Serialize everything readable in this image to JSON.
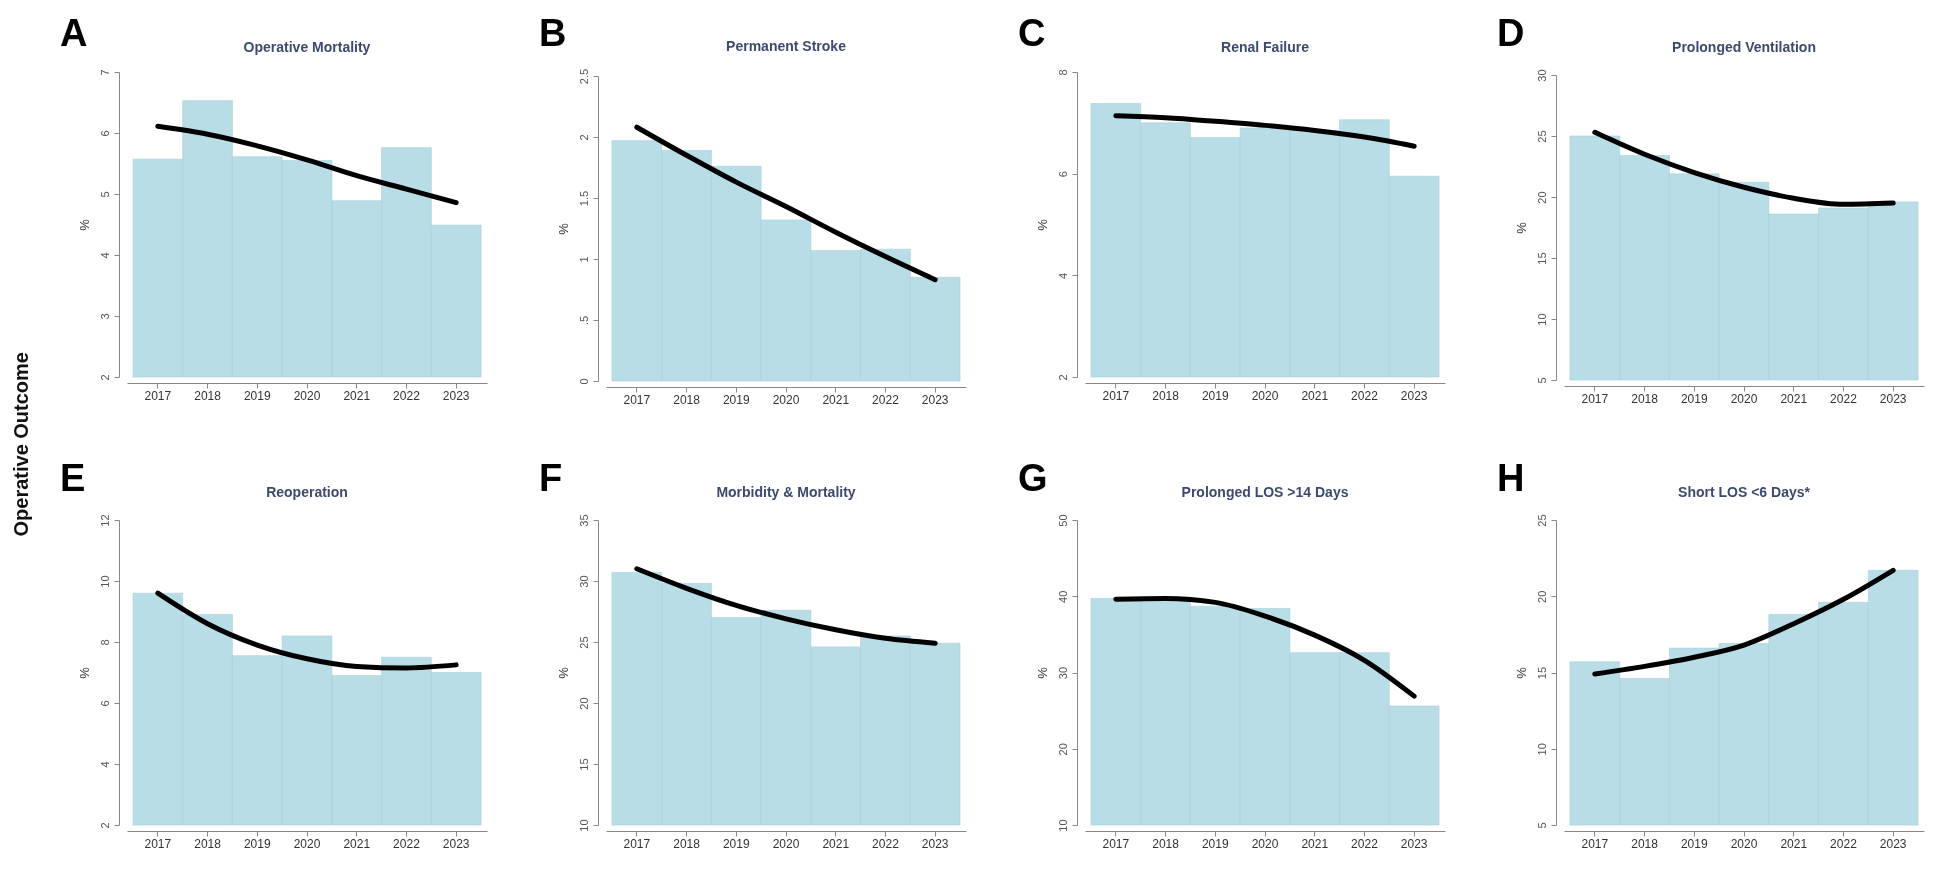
{
  "chart_data": [
    {
      "type": "bar",
      "title": "Operative Mortality",
      "ylabel": "%",
      "annotations": [
        "A",
        "Operative Outcome"
      ],
      "categories": [
        "2017",
        "2018",
        "2019",
        "2020",
        "2021",
        "2022",
        "2023"
      ],
      "ylim": [
        2,
        7
      ],
      "yticks": [
        2,
        3,
        4,
        5,
        6,
        7
      ],
      "series": [
        {
          "color": "#b9dde7",
          "values": [
            5.57,
            6.53,
            5.61,
            5.55,
            4.89,
            5.76,
            4.49
          ]
        },
        {
          "type": "line",
          "color": "#000000",
          "values": [
            6.11,
            5.98,
            5.79,
            5.56,
            5.3,
            5.08,
            4.86
          ]
        }
      ]
    },
    {
      "type": "bar",
      "title": "Permanent Stroke",
      "ylabel": "%",
      "annotations": [
        "B"
      ],
      "categories": [
        "2017",
        "2018",
        "2019",
        "2020",
        "2021",
        "2022",
        "2023"
      ],
      "ylim": [
        0,
        2.5
      ],
      "yticks": [
        0,
        {
          "value": 0.5,
          "label": ".5"
        },
        1,
        1.5,
        2,
        2.5
      ],
      "series": [
        {
          "color": "#b9dde7",
          "values": [
            1.97,
            1.89,
            1.76,
            1.32,
            1.07,
            1.08,
            0.85
          ]
        },
        {
          "type": "line",
          "color": "#000000",
          "values": [
            2.08,
            1.85,
            1.63,
            1.43,
            1.22,
            1.02,
            0.83
          ]
        }
      ]
    },
    {
      "type": "bar",
      "title": "Renal Failure",
      "ylabel": "%",
      "annotations": [
        "C"
      ],
      "categories": [
        "2017",
        "2018",
        "2019",
        "2020",
        "2021",
        "2022",
        "2023"
      ],
      "ylim": [
        2,
        8
      ],
      "yticks": [
        2,
        4,
        6,
        8
      ],
      "series": [
        {
          "color": "#b9dde7",
          "values": [
            7.38,
            7.0,
            6.71,
            6.9,
            6.85,
            7.06,
            5.95
          ]
        },
        {
          "type": "line",
          "color": "#000000",
          "values": [
            7.14,
            7.1,
            7.03,
            6.95,
            6.85,
            6.72,
            6.54
          ]
        }
      ]
    },
    {
      "type": "bar",
      "title": "Prolonged Ventilation",
      "ylabel": "%",
      "annotations": [
        "D"
      ],
      "categories": [
        "2017",
        "2018",
        "2019",
        "2020",
        "2021",
        "2022",
        "2023"
      ],
      "ylim": [
        5,
        30
      ],
      "yticks": [
        5,
        10,
        15,
        20,
        25,
        30
      ],
      "series": [
        {
          "color": "#b9dde7",
          "values": [
            25.0,
            23.4,
            21.9,
            21.2,
            18.6,
            19.1,
            19.6
          ]
        },
        {
          "type": "line",
          "color": "#000000",
          "values": [
            25.3,
            23.5,
            22.0,
            20.8,
            19.9,
            19.4,
            19.5
          ]
        }
      ]
    },
    {
      "type": "bar",
      "title": "Reoperation",
      "ylabel": "%",
      "annotations": [
        "E"
      ],
      "categories": [
        "2017",
        "2018",
        "2019",
        "2020",
        "2021",
        "2022",
        "2023"
      ],
      "ylim": [
        2,
        12
      ],
      "yticks": [
        2,
        4,
        6,
        8,
        10,
        12
      ],
      "series": [
        {
          "color": "#b9dde7",
          "values": [
            9.6,
            8.9,
            7.55,
            8.2,
            6.9,
            7.5,
            7.0
          ]
        },
        {
          "type": "line",
          "color": "#000000",
          "values": [
            9.6,
            8.6,
            7.9,
            7.45,
            7.2,
            7.15,
            7.25
          ]
        }
      ]
    },
    {
      "type": "bar",
      "title": "Morbidity & Mortality",
      "ylabel": "%",
      "annotations": [
        "F"
      ],
      "categories": [
        "2017",
        "2018",
        "2019",
        "2020",
        "2021",
        "2022",
        "2023"
      ],
      "ylim": [
        10,
        35
      ],
      "yticks": [
        10,
        15,
        20,
        25,
        30,
        35
      ],
      "series": [
        {
          "color": "#b9dde7",
          "values": [
            30.7,
            29.8,
            27.0,
            27.6,
            24.6,
            25.5,
            24.9
          ]
        },
        {
          "type": "line",
          "color": "#000000",
          "values": [
            31.0,
            29.4,
            28.0,
            26.9,
            26.0,
            25.3,
            24.9
          ]
        }
      ]
    },
    {
      "type": "bar",
      "title": "Prolonged LOS >14 Days",
      "ylabel": "%",
      "annotations": [
        "G"
      ],
      "categories": [
        "2017",
        "2018",
        "2019",
        "2020",
        "2021",
        "2022",
        "2023"
      ],
      "ylim": [
        10,
        50
      ],
      "yticks": [
        10,
        20,
        30,
        40,
        50
      ],
      "series": [
        {
          "color": "#b9dde7",
          "values": [
            39.7,
            39.5,
            38.7,
            38.4,
            32.6,
            32.6,
            25.6
          ]
        },
        {
          "type": "line",
          "color": "#000000",
          "values": [
            39.6,
            39.7,
            39.2,
            37.4,
            34.9,
            31.6,
            26.9
          ]
        }
      ]
    },
    {
      "type": "bar",
      "title": "Short LOS <6 Days*",
      "ylabel": "%",
      "annotations": [
        "H"
      ],
      "categories": [
        "2017",
        "2018",
        "2019",
        "2020",
        "2021",
        "2022",
        "2023"
      ],
      "ylim": [
        5,
        25
      ],
      "yticks": [
        5,
        10,
        15,
        20,
        25
      ],
      "series": [
        {
          "color": "#b9dde7",
          "values": [
            15.7,
            14.6,
            16.6,
            16.9,
            18.8,
            19.6,
            21.7
          ]
        },
        {
          "type": "line",
          "color": "#000000",
          "values": [
            14.9,
            15.4,
            16.0,
            16.8,
            18.2,
            19.8,
            21.7
          ]
        }
      ]
    }
  ]
}
